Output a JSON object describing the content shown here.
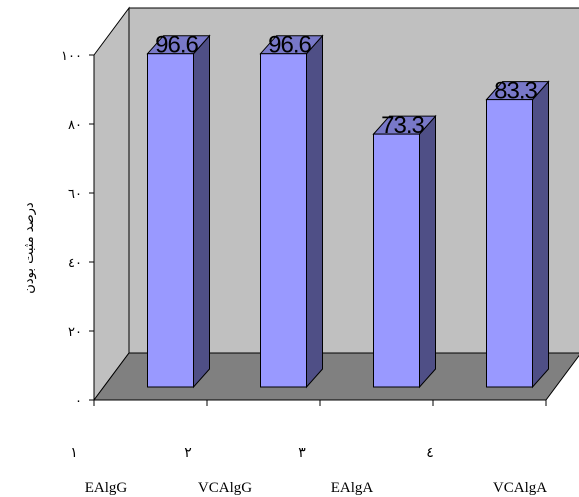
{
  "chart_data": {
    "type": "bar",
    "style": "3d-column",
    "categories": [
      "EAlgG",
      "VCAlgG",
      "EAlgA",
      "VCAlgA"
    ],
    "category_numbers": [
      "١",
      "٢",
      "٣",
      "٤"
    ],
    "values": [
      96.6,
      96.6,
      73.3,
      83.3
    ],
    "data_labels": [
      "96.6",
      "96.6",
      "73.3",
      "83.3"
    ],
    "ylabel": "درصد مثبت بودن",
    "ylim": [
      0,
      100
    ],
    "y_ticks": [
      0,
      20,
      40,
      60,
      80,
      100
    ],
    "y_tick_labels": [
      "٠",
      "٢٠",
      "٤٠",
      "٦٠",
      "٨٠",
      "١٠٠"
    ],
    "grid": false,
    "legend": "none",
    "colors": {
      "bar_front": "#9999ff",
      "bar_side": "#4f4f86",
      "bar_top": "#7878c8",
      "wall": "#c0c0c0",
      "floor": "#808080",
      "outline": "#000000"
    }
  }
}
